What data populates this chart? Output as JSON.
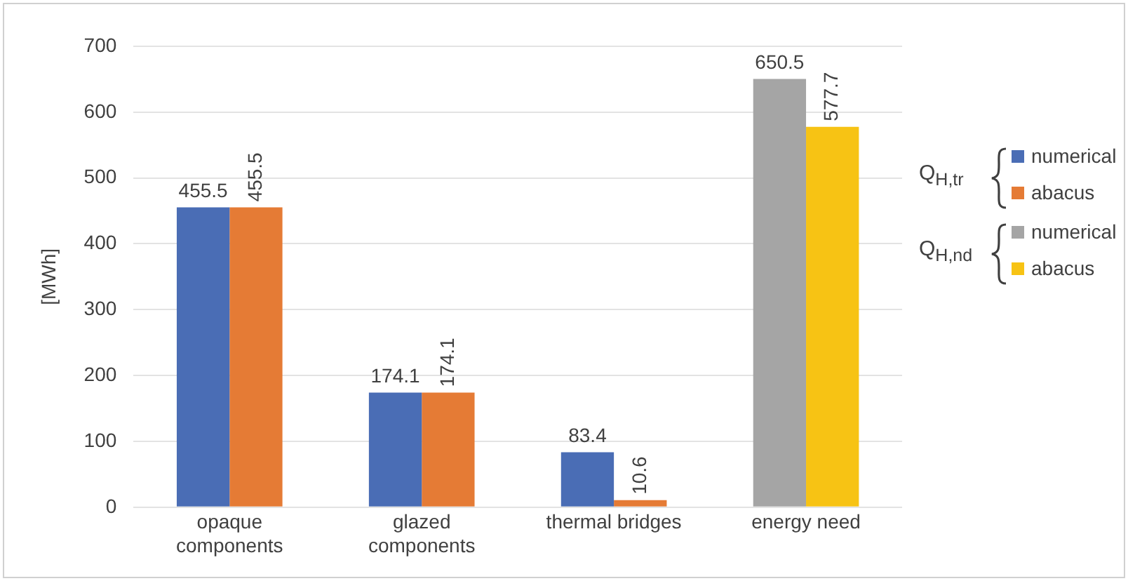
{
  "chart_data": {
    "type": "bar",
    "ylabel": "[MWh]",
    "categories": [
      "opaque components",
      "glazed components",
      "thermal bridges",
      "energy need"
    ],
    "series": [
      {
        "name": "numerical",
        "color": "#4a6db5",
        "values": [
          455.5,
          174.1,
          83.4,
          null
        ]
      },
      {
        "name": "abacus",
        "color": "#e57b35",
        "values": [
          455.5,
          174.1,
          10.6,
          null
        ]
      },
      {
        "name": "numerical",
        "color": "#a5a5a5",
        "values": [
          null,
          null,
          null,
          650.5
        ]
      },
      {
        "name": "abacus",
        "color": "#f7c314",
        "values": [
          null,
          null,
          null,
          577.7
        ]
      }
    ],
    "annotations": [
      "Q$_{H,tr}$",
      "Q$_{H,nd}$"
    ],
    "ylim": [
      0,
      700
    ],
    "yticks": [
      0,
      100,
      200,
      300,
      400,
      500,
      600,
      700
    ],
    "grid": "y",
    "legend": "right",
    "data_labels": true
  }
}
